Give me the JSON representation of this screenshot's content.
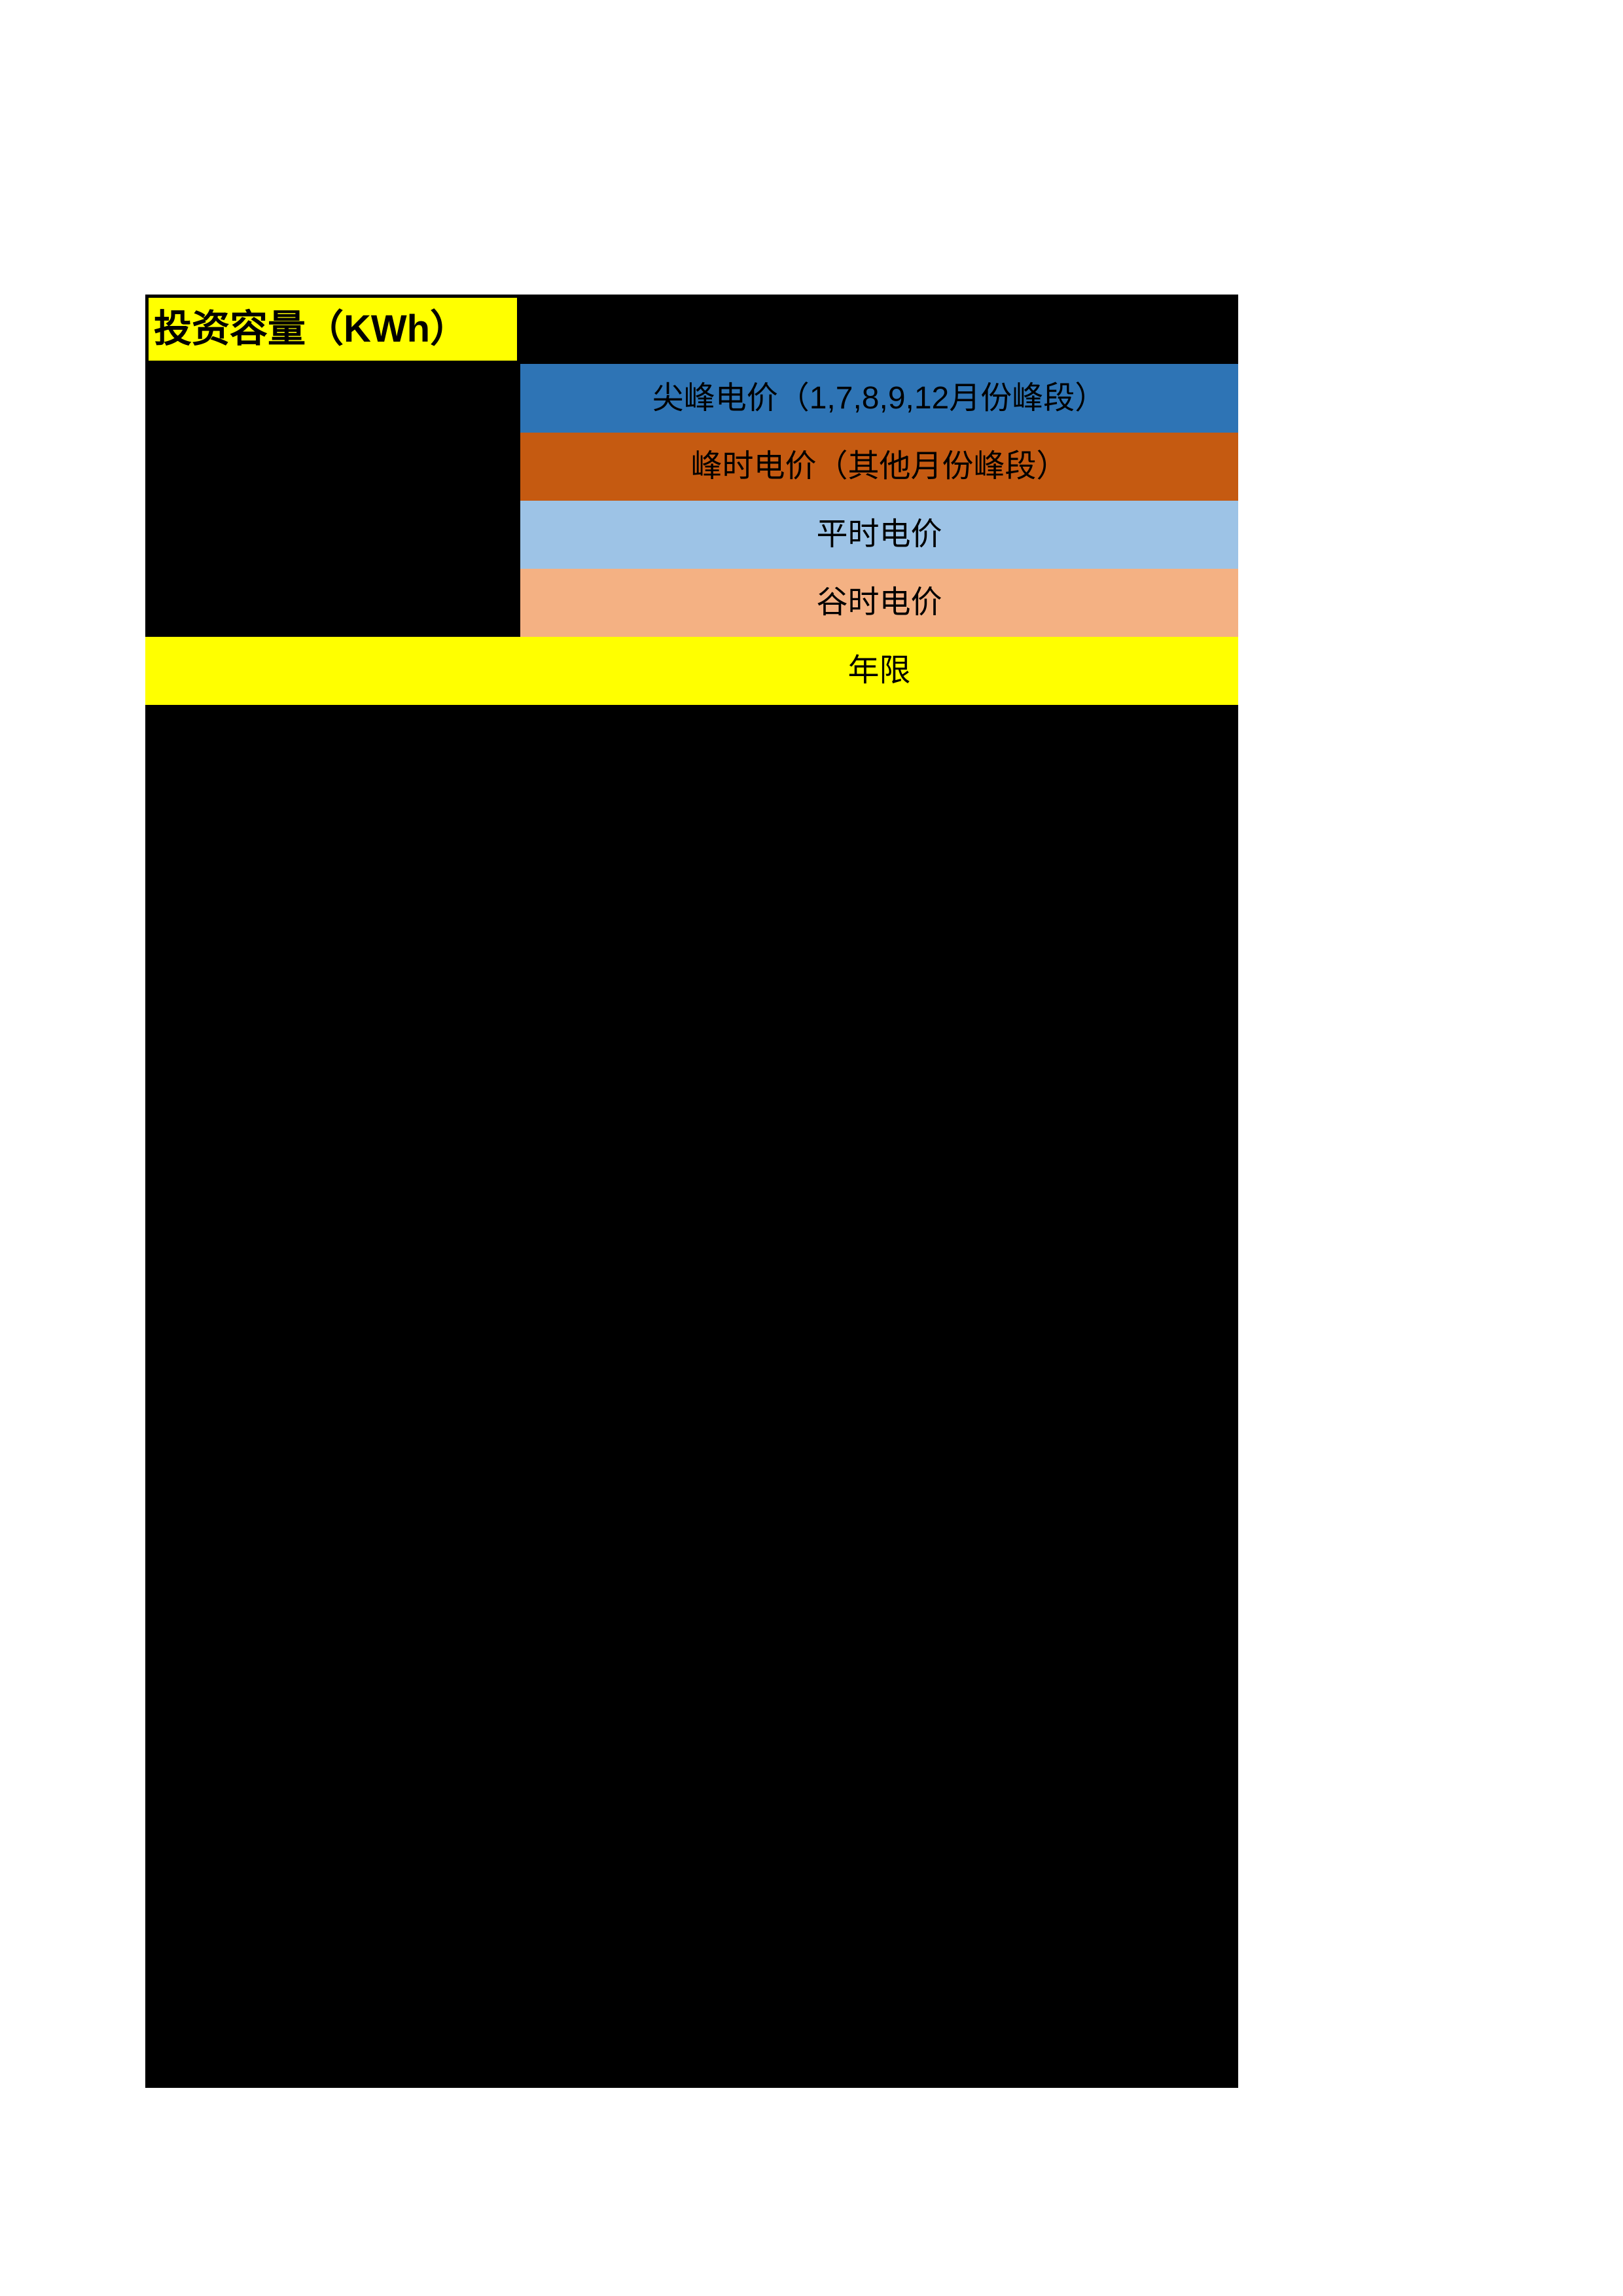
{
  "colors": {
    "page_background": "#FFFFFF",
    "filler_black": "#000000",
    "header_yellow": "#FFFF00",
    "peak_blue": "#2E74B5",
    "high_orange": "#C55A11",
    "flat_lightblue": "#9DC3E6",
    "valley_salmon": "#F4B183",
    "year_yellow": "#FFFF00",
    "text_black": "#000000"
  },
  "table": {
    "header_cell": {
      "label": "投资容量（KWh）",
      "bg": "#FFFF00"
    },
    "price_rows": [
      {
        "label": "尖峰电价（1,7,8,9,12月份峰段）",
        "bg": "#2E74B5"
      },
      {
        "label": "峰时电价（其他月份峰段）",
        "bg": "#C55A11"
      },
      {
        "label": "平时电价",
        "bg": "#9DC3E6"
      },
      {
        "label": "谷时电价",
        "bg": "#F4B183"
      }
    ],
    "year_row": {
      "label": "年限",
      "bg": "#FFFF00"
    }
  }
}
